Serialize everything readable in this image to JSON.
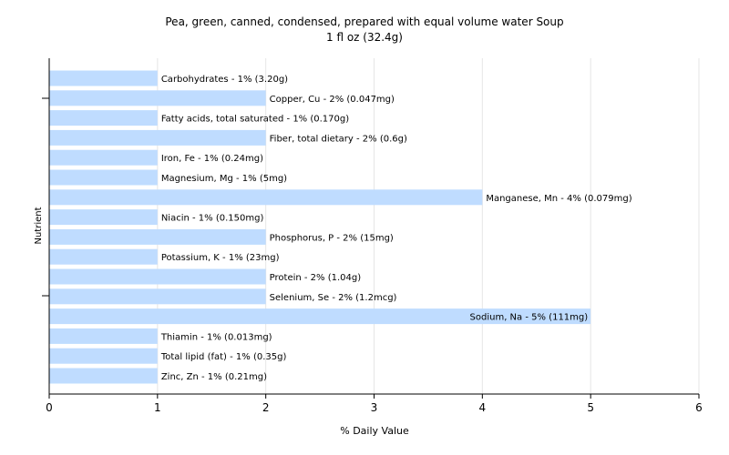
{
  "chart_data": {
    "type": "bar",
    "orientation": "horizontal",
    "title": "Pea, green, canned, condensed, prepared with equal volume water Soup",
    "subtitle": "1 fl oz (32.4g)",
    "xlabel": "% Daily Value",
    "ylabel": "Nutrient",
    "xlim": [
      0,
      6
    ],
    "xticks": [
      0,
      1,
      2,
      3,
      4,
      5,
      6
    ],
    "grid": true,
    "bar_color": "#bfdcff",
    "categories": [
      "Carbohydrates",
      "Copper, Cu",
      "Fatty acids, total saturated",
      "Fiber, total dietary",
      "Iron, Fe",
      "Magnesium, Mg",
      "Manganese, Mn",
      "Niacin",
      "Phosphorus, P",
      "Potassium, K",
      "Protein",
      "Selenium, Se",
      "Sodium, Na",
      "Thiamin",
      "Total lipid (fat)",
      "Zinc, Zn"
    ],
    "values": [
      1,
      2,
      1,
      2,
      1,
      1,
      4,
      1,
      2,
      1,
      2,
      2,
      5,
      1,
      1,
      1
    ],
    "labels": [
      "Carbohydrates - 1% (3.20g)",
      "Copper, Cu - 2% (0.047mg)",
      "Fatty acids, total saturated - 1% (0.170g)",
      "Fiber, total dietary - 2% (0.6g)",
      "Iron, Fe - 1% (0.24mg)",
      "Magnesium, Mg - 1% (5mg)",
      "Manganese, Mn - 4% (0.079mg)",
      "Niacin - 1% (0.150mg)",
      "Phosphorus, P - 2% (15mg)",
      "Potassium, K - 1% (23mg)",
      "Protein - 2% (1.04g)",
      "Selenium, Se - 2% (1.2mcg)",
      "Sodium, Na - 5% (111mg)",
      "Thiamin - 1% (0.013mg)",
      "Total lipid (fat) - 1% (0.35g)",
      "Zinc, Zn - 1% (0.21mg)"
    ]
  }
}
